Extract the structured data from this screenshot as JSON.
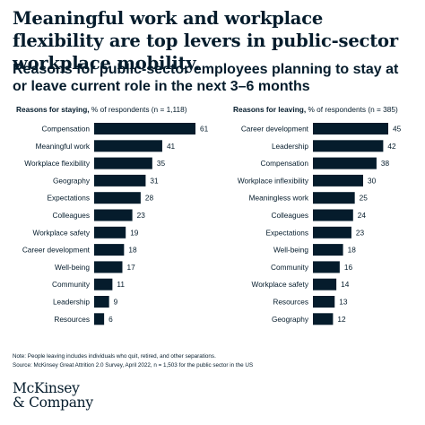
{
  "headline": "Meaningful work and workplace flexibility are top levers in public-sector workplace mobility.",
  "subtitle": "Reasons for public-sector employees planning to stay at or leave current role in the next 3–6 months",
  "notes": {
    "line1": "Note: People leaving includes individuals who quit, retired, and other separations.",
    "line2": "Source: McKinsey Great Attrition 2.0 Survey, April 2022, n = 1,503 for the public sector in the US"
  },
  "logo": {
    "line1": "McKinsey",
    "line2": "& Company"
  },
  "colors": {
    "bar": "#051c2c",
    "text": "#051c2c"
  },
  "chart_data": [
    {
      "type": "bar",
      "orientation": "horizontal",
      "title_bold": "Reasons for staying,",
      "title_rest": " % of respondents (n = 1,118)",
      "xlim": [
        0,
        61
      ],
      "categories": [
        "Compensation",
        "Meaningful work",
        "Workplace flexibility",
        "Geography",
        "Expectations",
        "Colleagues",
        "Workplace safety",
        "Career development",
        "Well-being",
        "Community",
        "Leadership",
        "Resources"
      ],
      "values": [
        61,
        41,
        35,
        31,
        28,
        23,
        19,
        18,
        17,
        11,
        9,
        6
      ]
    },
    {
      "type": "bar",
      "orientation": "horizontal",
      "title_bold": "Reasons for leaving,",
      "title_rest": " % of respondents (n = 385)",
      "xlim": [
        0,
        61
      ],
      "categories": [
        "Career development",
        "Leadership",
        "Compensation",
        "Workplace inflexibility",
        "Meaningless work",
        "Colleagues",
        "Expectations",
        "Well-being",
        "Community",
        "Workplace safety",
        "Resources",
        "Geography"
      ],
      "values": [
        45,
        42,
        38,
        30,
        25,
        24,
        23,
        18,
        16,
        14,
        13,
        12
      ]
    }
  ]
}
